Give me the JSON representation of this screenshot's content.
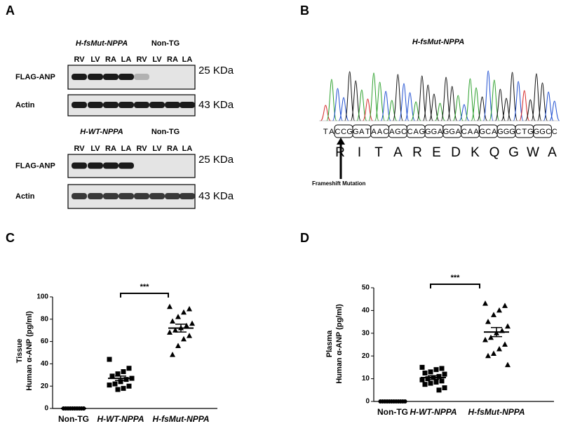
{
  "panel_a": {
    "label": "A",
    "blots": [
      {
        "genotype": "H-fsMut-NPPA",
        "control": "Non-TG",
        "lanes": [
          "RV",
          "LV",
          "RA",
          "LA",
          "RV",
          "LV",
          "RA",
          "LA"
        ],
        "rows": [
          {
            "name": "FLAG-ANP",
            "size": "25 KDa"
          },
          {
            "name": "Actin",
            "size": "43 KDa"
          }
        ]
      },
      {
        "genotype": "H-WT-NPPA",
        "control": "Non-TG",
        "lanes": [
          "RV",
          "LV",
          "RA",
          "LA",
          "RV",
          "LV",
          "RA",
          "LA"
        ],
        "rows": [
          {
            "name": "FLAG-ANP",
            "size": "25 KDa"
          },
          {
            "name": "Actin",
            "size": "43 KDa"
          }
        ]
      }
    ]
  },
  "panel_b": {
    "label": "B",
    "title": "H-fsMut-NPPA",
    "sequence": [
      "T",
      "A",
      "C",
      "C",
      "G",
      "G",
      "A",
      "T",
      "A",
      "A",
      "C",
      "A",
      "G",
      "C",
      "C",
      "A",
      "G",
      "G",
      "G",
      "A",
      "G",
      "G",
      "A",
      "C",
      "A",
      "A",
      "G",
      "C",
      "A",
      "G",
      "G",
      "G",
      "C",
      "T",
      "G",
      "G",
      "G",
      "C",
      "C"
    ],
    "amino_acids": [
      "R",
      "I",
      "T",
      "A",
      "R",
      "E",
      "D",
      "K",
      "Q",
      "G",
      "W",
      "A"
    ],
    "annotation": "Frameshift Mutation"
  },
  "chart_data": [
    {
      "type": "dotplot",
      "label": "C",
      "ylabel_lines": [
        "Tissue",
        "Human α-ANP (pg/ml)"
      ],
      "categories": [
        "Non-TG",
        "H-WT-NPPA",
        "H-fsMut-NPPA"
      ],
      "markers": [
        "circle",
        "square",
        "triangle"
      ],
      "color": "#000000",
      "groups": [
        {
          "values": [
            0,
            0,
            0,
            0,
            0,
            0,
            0,
            0,
            0,
            0
          ],
          "mean": 0,
          "sem": 0
        },
        {
          "values": [
            44,
            36,
            33,
            31,
            29,
            27,
            26,
            24,
            22,
            21,
            20,
            18,
            17
          ],
          "mean": 27,
          "sem": 2
        },
        {
          "values": [
            91,
            89,
            86,
            82,
            78,
            76,
            74,
            72,
            70,
            68,
            65,
            62,
            56,
            48
          ],
          "mean": 72,
          "sem": 3.5
        }
      ],
      "annotation": "***",
      "ylim": [
        0,
        100
      ],
      "yticks": [
        0,
        20,
        40,
        60,
        80,
        100
      ]
    },
    {
      "type": "dotplot",
      "label": "D",
      "ylabel_lines": [
        "Plasma",
        "Human α-ANP (pg/ml)"
      ],
      "categories": [
        "Non-TG",
        "H-WT-NPPA",
        "H-fsMut-NPPA"
      ],
      "markers": [
        "circle",
        "square",
        "triangle"
      ],
      "color": "#000000",
      "groups": [
        {
          "values": [
            0,
            0,
            0,
            0,
            0,
            0,
            0,
            0,
            0,
            0,
            0,
            0
          ],
          "mean": 0,
          "sem": 0
        },
        {
          "values": [
            15,
            14.5,
            14,
            13,
            12.5,
            12,
            11,
            10.5,
            10,
            9.5,
            9,
            8.5,
            8,
            7.5,
            6,
            5
          ],
          "mean": 10.5,
          "sem": 0.8
        },
        {
          "values": [
            43,
            42,
            40,
            38,
            35,
            33,
            31,
            30,
            28,
            27,
            25,
            23,
            21,
            20,
            16
          ],
          "mean": 30.5,
          "sem": 2
        }
      ],
      "annotation": "***",
      "ylim": [
        0,
        50
      ],
      "yticks": [
        0,
        10,
        20,
        30,
        40,
        50
      ]
    }
  ]
}
